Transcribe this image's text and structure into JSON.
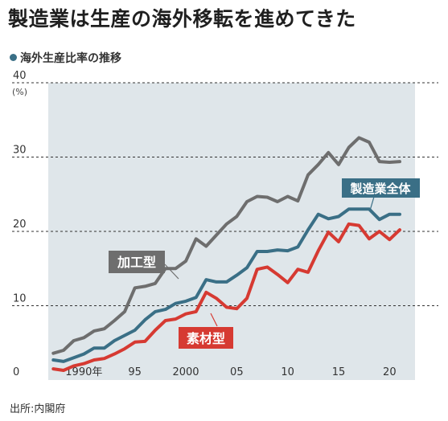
{
  "title": "製造業は生産の海外移転を進めてきた",
  "subtitle": "海外生産比率の推移",
  "source": "出所:内閣府",
  "chart_data": {
    "type": "line",
    "title": "製造業は生産の海外移転を進めてきた",
    "subtitle": "海外生産比率の推移",
    "y_unit": "(%)",
    "ylim": [
      0,
      40
    ],
    "yticks": [
      0,
      10,
      20,
      30,
      40
    ],
    "xlim": [
      1986.5,
      2022.5
    ],
    "xticks": [
      {
        "value": 1990,
        "label": "1990年"
      },
      {
        "value": 1995,
        "label": "95"
      },
      {
        "value": 2000,
        "label": "2000"
      },
      {
        "value": 2005,
        "label": "05"
      },
      {
        "value": 2010,
        "label": "10"
      },
      {
        "value": 2015,
        "label": "15"
      },
      {
        "value": 2020,
        "label": "20"
      }
    ],
    "grid": "horizontal dashed at 20, 30, 40",
    "x": [
      1987,
      1988,
      1989,
      1990,
      1991,
      1992,
      1993,
      1994,
      1995,
      1996,
      1997,
      1998,
      1999,
      2000,
      2001,
      2002,
      2003,
      2004,
      2005,
      2006,
      2007,
      2008,
      2009,
      2010,
      2011,
      2012,
      2013,
      2014,
      2015,
      2016,
      2017,
      2018,
      2019,
      2020,
      2021
    ],
    "series": [
      {
        "name": "加工型",
        "color": "#6e6e6e",
        "values": [
          3.6,
          4.0,
          5.3,
          5.7,
          6.6,
          6.9,
          8.0,
          9.2,
          12.4,
          12.6,
          13.0,
          15.0,
          15.0,
          16.0,
          19.0,
          18.0,
          19.5,
          21.0,
          22.0,
          24.0,
          24.7,
          24.6,
          24.0,
          24.7,
          24.1,
          27.6,
          29.0,
          30.6,
          29.0,
          31.3,
          32.6,
          32.0,
          29.4,
          29.3,
          29.4
        ]
      },
      {
        "name": "製造業全体",
        "color": "#3a6f86",
        "values": [
          2.7,
          2.5,
          3.0,
          3.5,
          4.3,
          4.3,
          5.3,
          6.0,
          6.7,
          8.1,
          9.2,
          9.5,
          10.3,
          10.6,
          11.1,
          13.5,
          13.2,
          13.2,
          14.1,
          15.1,
          17.3,
          17.3,
          17.5,
          17.4,
          17.9,
          20.2,
          22.3,
          21.7,
          22.0,
          23.0,
          23.0,
          23.0,
          21.6,
          22.3,
          22.3
        ]
      },
      {
        "name": "素材型",
        "color": "#d63a32",
        "values": [
          1.5,
          1.3,
          1.9,
          2.2,
          2.7,
          2.9,
          3.5,
          4.2,
          5.1,
          5.2,
          6.7,
          8.0,
          8.2,
          8.9,
          9.2,
          11.8,
          11.0,
          9.8,
          9.6,
          11.0,
          14.9,
          15.2,
          14.2,
          13.1,
          14.9,
          14.5,
          17.4,
          19.9,
          18.6,
          21.0,
          20.8,
          19.0,
          20.0,
          18.9,
          20.2
        ]
      }
    ],
    "labels": {
      "processing": "加工型",
      "total": "製造業全体",
      "materials": "素材型"
    }
  }
}
